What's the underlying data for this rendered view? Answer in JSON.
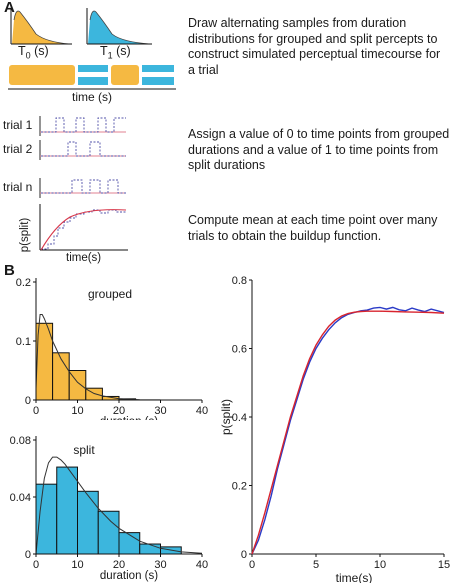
{
  "panel_a": {
    "label": "A",
    "dist_label_0": "T",
    "dist_label_0_sub": "0",
    "dist_label_0_unit": " (s)",
    "dist_label_1": "T",
    "dist_label_1_sub": "1",
    "dist_label_1_unit": " (s)",
    "timecourse_label": "time (s)",
    "trial_labels": [
      "trial 1",
      "trial 2",
      "trial n"
    ],
    "psplit_label": "p(split)",
    "time_label": "time(s)",
    "step1_text": "Draw alternating samples from duration distributions for grouped and split percepts to construct simulated perceptual timecourse for a trial",
    "step2_text": "Assign a value of 0 to time points from grouped durations and a value of 1 to time points from split durations",
    "step3_text": "Compute mean at each time point over many trials to obtain the buildup function.",
    "colors": {
      "grouped": "#f5b942",
      "split": "#3cb6dd",
      "trace": "#6b6bb0",
      "fit": "#d8374a"
    }
  },
  "panel_b": {
    "label": "B"
  },
  "chart_data": [
    {
      "type": "bar",
      "title": "grouped",
      "xlabel": "duration (s)",
      "ylabel": "",
      "xlim": [
        0,
        40
      ],
      "ylim": [
        0,
        0.2
      ],
      "yticks": [
        0,
        0.1,
        0.2
      ],
      "xticks": [
        0,
        10,
        20,
        30,
        40
      ],
      "bin_edges": [
        0,
        4,
        8,
        12,
        16,
        20,
        24
      ],
      "values": [
        0.13,
        0.08,
        0.05,
        0.02,
        0.006,
        0.002
      ],
      "fit_x": [
        0,
        0.5,
        1,
        1.5,
        2,
        3,
        4,
        6,
        8,
        10,
        12,
        14,
        16,
        20,
        25,
        30
      ],
      "fit_y": [
        0.02,
        0.11,
        0.145,
        0.145,
        0.138,
        0.12,
        0.1,
        0.07,
        0.048,
        0.03,
        0.019,
        0.011,
        0.007,
        0.002,
        0.0005,
        0.0001
      ],
      "color": "#f5b942"
    },
    {
      "type": "bar",
      "title": "split",
      "xlabel": "duration (s)",
      "ylabel": "",
      "xlim": [
        0,
        40
      ],
      "ylim": [
        0,
        0.08
      ],
      "yticks": [
        0,
        0.04,
        0.08
      ],
      "xticks": [
        0,
        10,
        20,
        30,
        40
      ],
      "bin_edges": [
        0,
        5,
        10,
        15,
        20,
        25,
        30,
        35
      ],
      "values": [
        0.049,
        0.061,
        0.044,
        0.03,
        0.015,
        0.007,
        0.005
      ],
      "fit_x": [
        0,
        1,
        2,
        3,
        4,
        5,
        6,
        7,
        8,
        10,
        12,
        15,
        18,
        20,
        25,
        30,
        35,
        40
      ],
      "fit_y": [
        0.0,
        0.03,
        0.053,
        0.064,
        0.068,
        0.068,
        0.066,
        0.063,
        0.059,
        0.051,
        0.043,
        0.032,
        0.023,
        0.018,
        0.009,
        0.004,
        0.0015,
        0.0005
      ],
      "color": "#3cb6dd"
    },
    {
      "type": "line",
      "title": "",
      "xlabel": "time(s)",
      "ylabel": "p(split)",
      "xlim": [
        0,
        15
      ],
      "ylim": [
        0,
        0.8
      ],
      "xticks": [
        0,
        5,
        10,
        15
      ],
      "yticks": [
        0,
        0.2,
        0.4,
        0.6,
        0.8
      ],
      "series": [
        {
          "color": "#2a3bc7",
          "x": [
            0,
            0.5,
            1,
            1.5,
            2,
            2.5,
            3,
            3.5,
            4,
            4.5,
            5,
            5.5,
            6,
            6.5,
            7,
            7.5,
            8,
            8.5,
            9,
            9.5,
            10,
            10.5,
            11,
            11.5,
            12,
            12.5,
            13,
            13.5,
            14,
            14.5,
            15
          ],
          "y": [
            0.0,
            0.04,
            0.1,
            0.17,
            0.25,
            0.32,
            0.39,
            0.45,
            0.51,
            0.56,
            0.6,
            0.63,
            0.655,
            0.675,
            0.69,
            0.7,
            0.705,
            0.71,
            0.712,
            0.718,
            0.72,
            0.715,
            0.72,
            0.713,
            0.71,
            0.718,
            0.712,
            0.708,
            0.715,
            0.71,
            0.705
          ]
        },
        {
          "color": "#d8242e",
          "x": [
            0,
            0.5,
            1,
            1.5,
            2,
            2.5,
            3,
            3.5,
            4,
            4.5,
            5,
            5.5,
            6,
            6.5,
            7,
            7.5,
            8,
            8.5,
            9,
            9.5,
            10,
            11,
            12,
            13,
            14,
            15
          ],
          "y": [
            0.0,
            0.055,
            0.12,
            0.19,
            0.26,
            0.33,
            0.4,
            0.46,
            0.52,
            0.57,
            0.61,
            0.64,
            0.665,
            0.683,
            0.695,
            0.702,
            0.706,
            0.708,
            0.709,
            0.709,
            0.709,
            0.708,
            0.707,
            0.706,
            0.705,
            0.703
          ]
        }
      ]
    }
  ]
}
